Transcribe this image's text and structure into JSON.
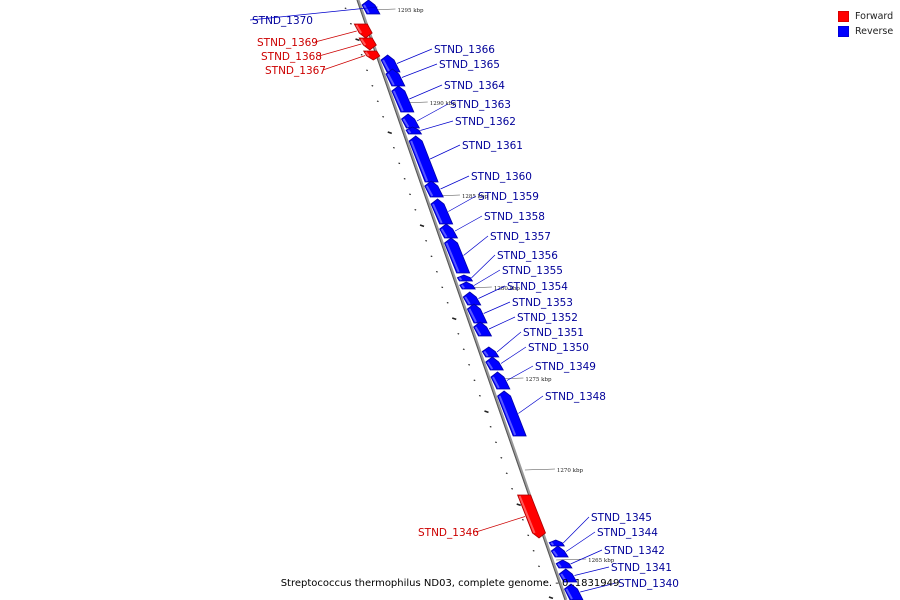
{
  "caption": "Streptococcus thermophilus ND03, complete genome. - 0..1831949",
  "legend": {
    "items": [
      {
        "label": "Forward",
        "color": "#ff0000"
      },
      {
        "label": "Reverse",
        "color": "#0000ff"
      }
    ]
  },
  "colors": {
    "forward": "#ff0000",
    "reverse": "#0000ff",
    "forward_label": "#cc0000",
    "reverse_label": "#000099",
    "backbone": "#888888"
  },
  "scale_labels": [
    "1295 kbp",
    "1290 kbp",
    "1285 kbp",
    "1280 kbp",
    "1275 kbp",
    "1270 kbp",
    "1265 kbp"
  ],
  "genes": [
    {
      "name": "STND_1370",
      "strand": "reverse"
    },
    {
      "name": "STND_1369",
      "strand": "forward"
    },
    {
      "name": "STND_1368",
      "strand": "forward"
    },
    {
      "name": "STND_1367",
      "strand": "forward"
    },
    {
      "name": "STND_1366",
      "strand": "reverse"
    },
    {
      "name": "STND_1365",
      "strand": "reverse"
    },
    {
      "name": "STND_1364",
      "strand": "reverse"
    },
    {
      "name": "STND_1363",
      "strand": "reverse"
    },
    {
      "name": "STND_1362",
      "strand": "reverse"
    },
    {
      "name": "STND_1361",
      "strand": "reverse"
    },
    {
      "name": "STND_1360",
      "strand": "reverse"
    },
    {
      "name": "STND_1359",
      "strand": "reverse"
    },
    {
      "name": "STND_1358",
      "strand": "reverse"
    },
    {
      "name": "STND_1357",
      "strand": "reverse"
    },
    {
      "name": "STND_1356",
      "strand": "reverse"
    },
    {
      "name": "STND_1355",
      "strand": "reverse"
    },
    {
      "name": "STND_1354",
      "strand": "reverse"
    },
    {
      "name": "STND_1353",
      "strand": "reverse"
    },
    {
      "name": "STND_1352",
      "strand": "reverse"
    },
    {
      "name": "STND_1351",
      "strand": "reverse"
    },
    {
      "name": "STND_1350",
      "strand": "reverse"
    },
    {
      "name": "STND_1349",
      "strand": "reverse"
    },
    {
      "name": "STND_1348",
      "strand": "reverse"
    },
    {
      "name": "STND_1346",
      "strand": "forward"
    },
    {
      "name": "STND_1345",
      "strand": "reverse"
    },
    {
      "name": "STND_1344",
      "strand": "reverse"
    },
    {
      "name": "STND_1342",
      "strand": "reverse"
    },
    {
      "name": "STND_1341",
      "strand": "reverse"
    },
    {
      "name": "STND_1340",
      "strand": "reverse"
    }
  ]
}
